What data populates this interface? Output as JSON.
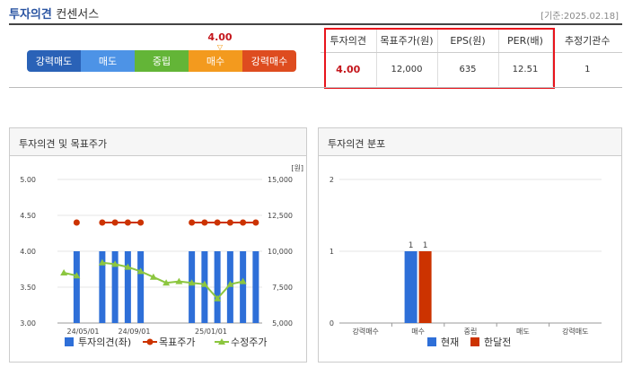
{
  "header": {
    "title_bold": "투자의견",
    "title_rest": "컨센서스",
    "date": "[기준:2025.02.18]"
  },
  "scale": {
    "current_value": "4.00",
    "marker": "▽",
    "segments": [
      {
        "label": "강력매도",
        "color": "#2a62b7"
      },
      {
        "label": "매도",
        "color": "#4d93e6"
      },
      {
        "label": "중립",
        "color": "#63b537"
      },
      {
        "label": "매수",
        "color": "#f39a1e"
      },
      {
        "label": "강력매수",
        "color": "#de4c1f"
      }
    ]
  },
  "summary": {
    "headers": [
      "투자의견",
      "목표주가(원)",
      "EPS(원)",
      "PER(배)",
      "추정기관수"
    ],
    "row": [
      "4.00",
      "12,000",
      "635",
      "12.51",
      "1"
    ]
  },
  "left_panel": {
    "title": "투자의견 및 목표주가"
  },
  "right_panel": {
    "title": "투자의견 분포"
  },
  "chart_data": [
    {
      "type": "bar",
      "title": "투자의견 및 목표주가",
      "y_left": {
        "ylim": [
          3.0,
          5.0
        ],
        "ticks": [
          "5.00",
          "4.50",
          "4.00",
          "3.50",
          "3.00"
        ]
      },
      "y_right": {
        "unit": "[원]",
        "ylim": [
          5000,
          15000
        ],
        "ticks": [
          "15,000",
          "12,500",
          "10,000",
          "7,500",
          "5,000"
        ]
      },
      "x_ticks": [
        "24/05/01",
        "24/09/01",
        "25/01/01"
      ],
      "series": [
        {
          "name": "투자의견(좌)",
          "color": "#2e6fd8",
          "type": "bar",
          "axis": "left",
          "values": [
            null,
            4.0,
            null,
            4.0,
            4.0,
            4.0,
            4.0,
            null,
            null,
            null,
            4.0,
            4.0,
            4.0,
            4.0,
            4.0,
            4.0
          ]
        },
        {
          "name": "목표주가",
          "color": "#cc3300",
          "type": "line",
          "axis": "right",
          "values": [
            null,
            12000,
            null,
            12000,
            12000,
            12000,
            12000,
            null,
            null,
            null,
            12000,
            12000,
            12000,
            12000,
            12000,
            12000
          ]
        },
        {
          "name": "수정주가",
          "color": "#8cc63f",
          "type": "line",
          "axis": "right",
          "values": [
            8500,
            8300,
            null,
            9200,
            9100,
            8900,
            8600,
            8200,
            7800,
            7900,
            7800,
            7700,
            6700,
            7700,
            7900,
            null
          ]
        }
      ]
    },
    {
      "type": "bar",
      "title": "투자의견 분포",
      "ylim": [
        0,
        2
      ],
      "y_ticks": [
        "2",
        "1",
        "0"
      ],
      "categories": [
        "강력매수",
        "매수",
        "중립",
        "매도",
        "강력매도"
      ],
      "series": [
        {
          "name": "현재",
          "color": "#2e6fd8",
          "values": [
            0,
            1,
            0,
            0,
            0
          ]
        },
        {
          "name": "한달전",
          "color": "#cc3300",
          "values": [
            0,
            1,
            0,
            0,
            0
          ]
        }
      ],
      "data_labels": [
        "1",
        "1"
      ]
    }
  ]
}
